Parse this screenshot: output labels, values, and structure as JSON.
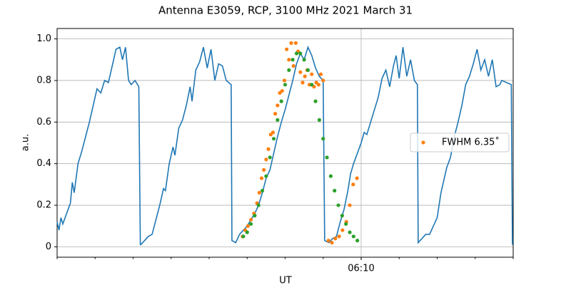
{
  "chart_data": {
    "type": "scatter",
    "title": "Antenna E3059, RCP, 3100 MHz 2021 March 31",
    "xlabel": "UT",
    "ylabel": "a.u.",
    "xlim": [
      362,
      374
    ],
    "ylim": [
      -0.05,
      1.05
    ],
    "xticks": [
      {
        "value": 370,
        "label": "06:10"
      }
    ],
    "xminorticks": [
      362,
      363,
      364,
      365,
      366,
      367,
      368,
      369,
      370,
      371,
      372,
      373,
      374
    ],
    "yticks": [
      0.0,
      0.2,
      0.4,
      0.6,
      0.8,
      {
        "value": 1,
        "label": "1.0"
      }
    ],
    "grid": true,
    "legend": "right",
    "series": [
      {
        "color": "#1f77b4",
        "mode": "line",
        "x": [
          362.0,
          362.05,
          362.1,
          362.15,
          362.25,
          362.35,
          362.4,
          362.45,
          362.55,
          362.65,
          362.75,
          362.85,
          362.95,
          363.05,
          363.15,
          363.25,
          363.35,
          363.45,
          363.55,
          363.65,
          363.72,
          363.8,
          363.88,
          363.95,
          364.05,
          364.15,
          364.19,
          364.2,
          364.3,
          364.4,
          364.5,
          364.6,
          364.7,
          364.8,
          364.85,
          364.95,
          365.05,
          365.1,
          365.2,
          365.3,
          365.4,
          365.5,
          365.55,
          365.65,
          365.75,
          365.85,
          365.95,
          366.05,
          366.15,
          366.25,
          366.35,
          366.45,
          366.58,
          366.6,
          366.7,
          366.8,
          366.9,
          367.0,
          367.1,
          367.2,
          367.3,
          367.4,
          367.5,
          367.6,
          367.7,
          367.8,
          367.9,
          368.0,
          368.1,
          368.2,
          368.3,
          368.4,
          368.5,
          368.6,
          368.7,
          368.8,
          368.9,
          369.0,
          369.04,
          369.15,
          369.25,
          369.35,
          369.45,
          369.55,
          369.65,
          369.72,
          369.8,
          369.9,
          370.0,
          370.08,
          370.15,
          370.25,
          370.35,
          370.45,
          370.55,
          370.65,
          370.75,
          370.85,
          370.92,
          371.0,
          371.1,
          371.2,
          371.3,
          371.4,
          371.48,
          371.5,
          371.6,
          371.7,
          371.8,
          371.9,
          372.0,
          372.1,
          372.15,
          372.25,
          372.35,
          372.45,
          372.55,
          372.65,
          372.75,
          372.85,
          372.95,
          373.05,
          373.15,
          373.25,
          373.35,
          373.45,
          373.55,
          373.65,
          373.7,
          373.95,
          373.98
        ],
        "values": [
          0.12,
          0.08,
          0.14,
          0.11,
          0.16,
          0.21,
          0.31,
          0.26,
          0.4,
          0.46,
          0.53,
          0.6,
          0.68,
          0.76,
          0.74,
          0.8,
          0.79,
          0.87,
          0.95,
          0.96,
          0.9,
          0.96,
          0.8,
          0.78,
          0.8,
          0.77,
          0.01,
          0.01,
          0.03,
          0.05,
          0.06,
          0.13,
          0.2,
          0.28,
          0.27,
          0.4,
          0.48,
          0.44,
          0.57,
          0.61,
          0.68,
          0.77,
          0.7,
          0.85,
          0.89,
          0.96,
          0.86,
          0.95,
          0.8,
          0.88,
          0.87,
          0.8,
          0.78,
          0.03,
          0.02,
          0.06,
          0.08,
          0.1,
          0.13,
          0.16,
          0.2,
          0.26,
          0.33,
          0.37,
          0.45,
          0.53,
          0.6,
          0.66,
          0.73,
          0.8,
          0.88,
          0.93,
          0.9,
          0.96,
          0.92,
          0.86,
          0.82,
          0.8,
          0.03,
          0.02,
          0.04,
          0.05,
          0.12,
          0.18,
          0.27,
          0.35,
          0.4,
          0.45,
          0.5,
          0.55,
          0.54,
          0.6,
          0.66,
          0.72,
          0.81,
          0.85,
          0.77,
          0.87,
          0.92,
          0.81,
          0.96,
          0.82,
          0.9,
          0.8,
          0.78,
          0.02,
          0.04,
          0.06,
          0.06,
          0.1,
          0.14,
          0.26,
          0.3,
          0.38,
          0.43,
          0.53,
          0.6,
          0.68,
          0.78,
          0.82,
          0.88,
          0.95,
          0.85,
          0.9,
          0.82,
          0.9,
          0.77,
          0.78,
          0.8,
          0.78,
          0.01
        ]
      },
      {
        "name": "FWHM 6.35˚",
        "color": "#ff7f0e",
        "mode": "dots",
        "x": [
          366.88,
          366.95,
          367.02,
          367.1,
          367.18,
          367.26,
          367.32,
          367.38,
          367.44,
          367.5,
          367.56,
          367.62,
          367.68,
          367.74,
          367.8,
          367.86,
          367.92,
          367.98,
          368.04,
          368.1,
          368.16,
          368.22,
          368.28,
          368.34,
          368.4,
          368.46,
          368.52,
          368.58,
          368.64,
          368.7,
          368.76,
          368.82,
          368.88,
          368.94,
          369.0,
          369.14,
          369.23,
          369.32,
          369.42,
          369.51,
          369.61,
          369.7,
          369.79,
          369.89
        ],
        "values": [
          0.05,
          0.08,
          0.1,
          0.13,
          0.16,
          0.21,
          0.26,
          0.33,
          0.37,
          0.42,
          0.47,
          0.54,
          0.55,
          0.64,
          0.68,
          0.74,
          0.75,
          0.8,
          0.95,
          0.9,
          0.98,
          0.87,
          0.98,
          0.94,
          0.84,
          0.79,
          0.82,
          0.85,
          0.78,
          0.83,
          0.77,
          0.79,
          0.78,
          0.83,
          0.8,
          0.03,
          0.02,
          0.04,
          0.05,
          0.08,
          0.12,
          0.2,
          0.3,
          0.33
        ]
      },
      {
        "color": "#2ca02c",
        "mode": "dots",
        "x": [
          366.9,
          367.0,
          367.1,
          367.2,
          367.3,
          367.4,
          367.5,
          367.6,
          367.7,
          367.8,
          367.9,
          368.0,
          368.1,
          368.2,
          368.3,
          368.4,
          368.5,
          368.6,
          368.7,
          368.8,
          368.9,
          369.0,
          369.1,
          369.2,
          369.3,
          369.4,
          369.5,
          369.6,
          369.7,
          369.8,
          369.9
        ],
        "values": [
          0.05,
          0.07,
          0.11,
          0.15,
          0.2,
          0.27,
          0.34,
          0.43,
          0.52,
          0.61,
          0.7,
          0.78,
          0.85,
          0.9,
          0.93,
          0.93,
          0.9,
          0.85,
          0.78,
          0.7,
          0.61,
          0.52,
          0.43,
          0.34,
          0.27,
          0.2,
          0.15,
          0.11,
          0.07,
          0.05,
          0.03
        ]
      }
    ]
  }
}
